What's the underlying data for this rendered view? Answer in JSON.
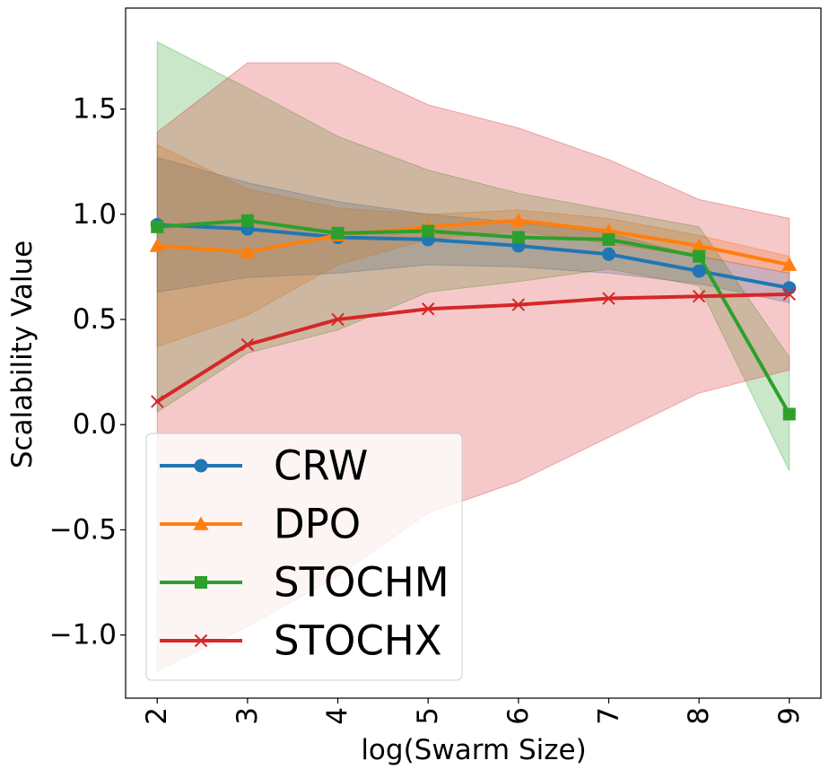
{
  "chart_data": {
    "type": "line",
    "title": "",
    "xlabel": "log(Swarm Size)",
    "ylabel": "Scalability Value",
    "x": [
      2,
      3,
      4,
      5,
      6,
      7,
      8,
      9
    ],
    "x_tick_labels": [
      "2",
      "3",
      "4",
      "5",
      "6",
      "7",
      "8",
      "9"
    ],
    "y_ticks": [
      -1.0,
      -0.5,
      0.0,
      0.5,
      1.0,
      1.5
    ],
    "y_tick_labels": [
      "−1.0",
      "−0.5",
      "0.0",
      "0.5",
      "1.0",
      "1.5"
    ],
    "xlim": [
      1.65,
      9.35
    ],
    "ylim": [
      -1.3,
      1.98
    ],
    "grid": false,
    "legend_position": "lower-left",
    "series": [
      {
        "name": "CRW",
        "color": "#1f77b4",
        "marker": "circle",
        "values": [
          0.95,
          0.93,
          0.89,
          0.88,
          0.85,
          0.81,
          0.73,
          0.65
        ],
        "band_upper": [
          1.27,
          1.15,
          1.06,
          1.0,
          0.96,
          0.91,
          0.8,
          0.72
        ],
        "band_lower": [
          0.63,
          0.7,
          0.72,
          0.76,
          0.75,
          0.72,
          0.67,
          0.58
        ]
      },
      {
        "name": "DPO",
        "color": "#ff7f0e",
        "marker": "triangle",
        "values": [
          0.85,
          0.82,
          0.9,
          0.94,
          0.97,
          0.92,
          0.85,
          0.76
        ],
        "band_upper": [
          1.33,
          1.12,
          1.03,
          1.0,
          1.02,
          0.98,
          0.9,
          0.8
        ],
        "band_lower": [
          0.37,
          0.52,
          0.76,
          0.88,
          0.92,
          0.86,
          0.8,
          0.72
        ]
      },
      {
        "name": "STOCHM",
        "color": "#2ca02c",
        "marker": "square",
        "values": [
          0.94,
          0.97,
          0.91,
          0.92,
          0.89,
          0.88,
          0.8,
          0.05
        ],
        "band_upper": [
          1.82,
          1.6,
          1.37,
          1.21,
          1.1,
          1.02,
          0.94,
          0.32
        ],
        "band_lower": [
          0.06,
          0.34,
          0.45,
          0.63,
          0.68,
          0.74,
          0.66,
          -0.22
        ]
      },
      {
        "name": "STOCHX",
        "color": "#d62728",
        "marker": "x",
        "values": [
          0.11,
          0.38,
          0.5,
          0.55,
          0.57,
          0.6,
          0.61,
          0.62
        ],
        "band_upper": [
          1.39,
          1.72,
          1.72,
          1.52,
          1.41,
          1.26,
          1.07,
          0.98
        ],
        "band_lower": [
          -1.17,
          -0.96,
          -0.72,
          -0.42,
          -0.27,
          -0.06,
          0.15,
          0.26
        ]
      }
    ]
  }
}
